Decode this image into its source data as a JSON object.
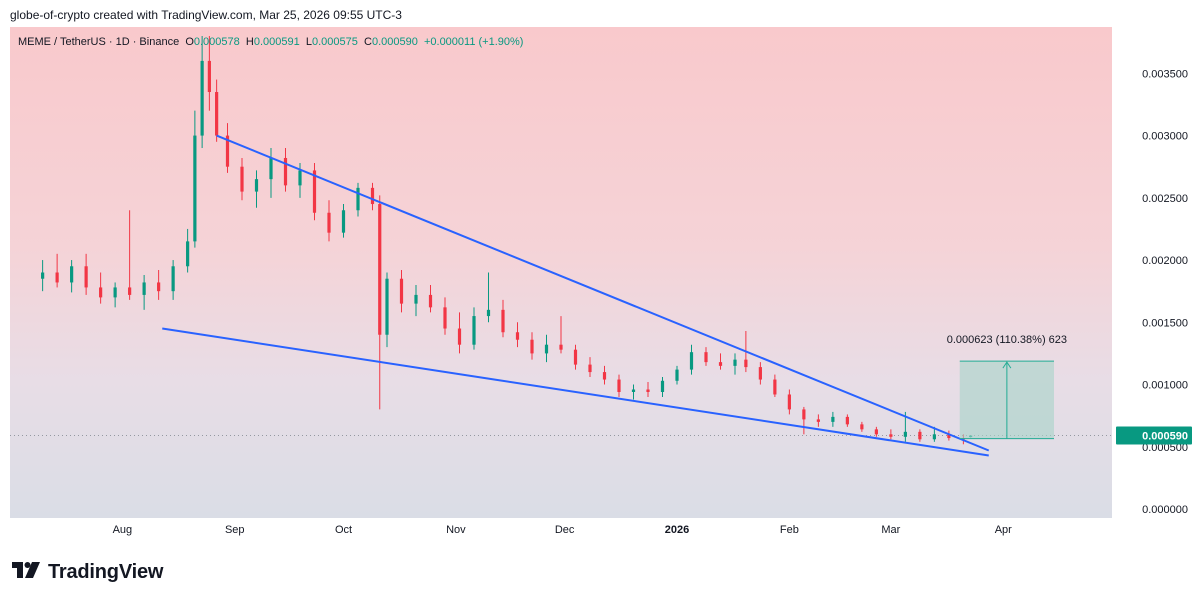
{
  "header": {
    "attribution": "globe-of-crypto created with TradingView.com, Mar 25, 2026 09:55 UTC-3"
  },
  "legend": {
    "symbol": "MEME / TetherUS · 1D · Binance",
    "o_label": "O",
    "o_value": "0.000578",
    "h_label": "H",
    "h_value": "0.000591",
    "l_label": "L",
    "l_value": "0.000575",
    "c_label": "C",
    "c_value": "0.000590",
    "change": "+0.000011 (+1.90%)"
  },
  "brand": {
    "name": "TradingView",
    "logo_icon": "tradingview-logo-icon"
  },
  "colors": {
    "up": "#089981",
    "down": "#f23645",
    "trendline": "#2962ff",
    "measure_fill": "#a6d3c8",
    "measure_line": "#22ab94",
    "price_tag": "#089981"
  },
  "chart_data": {
    "type": "candlestick",
    "symbol": "MEME/USDT",
    "interval": "1D",
    "ylim": [
      0,
      0.0038
    ],
    "y_ticks": [
      "0.000000",
      "0.000500",
      "0.001000",
      "0.001500",
      "0.002000",
      "0.002500",
      "0.003000",
      "0.003500"
    ],
    "y_tick_values": [
      0,
      0.0005,
      0.001,
      0.0015,
      0.002,
      0.0025,
      0.003,
      0.0035
    ],
    "x_ticks": [
      "Aug",
      "Sep",
      "Oct",
      "Nov",
      "Dec",
      "2026",
      "Feb",
      "Mar",
      "Apr"
    ],
    "x_tick_dates": [
      "2025-08-01",
      "2025-09-01",
      "2025-10-01",
      "2025-11-01",
      "2025-12-01",
      "2026-01-01",
      "2026-02-01",
      "2026-03-01",
      "2026-04-01"
    ],
    "current_price": "0.000590",
    "current_price_value": 0.00059,
    "trendlines": [
      {
        "name": "upper",
        "start": [
          "2025-08-27",
          0.003
        ],
        "end": [
          "2026-03-28",
          0.00047
        ]
      },
      {
        "name": "lower",
        "start": [
          "2025-08-12",
          0.00145
        ],
        "end": [
          "2026-03-28",
          0.00043
        ]
      }
    ],
    "measure": {
      "label": "0.000623 (110.38%) 623",
      "from_date": "2026-03-20",
      "to_date": "2026-04-15",
      "from_price": 0.000565,
      "to_price": 0.001188
    },
    "candles": [
      {
        "d": "2025-07-10",
        "o": 0.00185,
        "h": 0.002,
        "l": 0.00175,
        "c": 0.0019
      },
      {
        "d": "2025-07-14",
        "o": 0.0019,
        "h": 0.00205,
        "l": 0.00178,
        "c": 0.00182
      },
      {
        "d": "2025-07-18",
        "o": 0.00182,
        "h": 0.002,
        "l": 0.00174,
        "c": 0.00195
      },
      {
        "d": "2025-07-22",
        "o": 0.00195,
        "h": 0.00205,
        "l": 0.00172,
        "c": 0.00178
      },
      {
        "d": "2025-07-26",
        "o": 0.00178,
        "h": 0.0019,
        "l": 0.00165,
        "c": 0.0017
      },
      {
        "d": "2025-07-30",
        "o": 0.0017,
        "h": 0.00182,
        "l": 0.00162,
        "c": 0.00178
      },
      {
        "d": "2025-08-03",
        "o": 0.00178,
        "h": 0.0024,
        "l": 0.00168,
        "c": 0.00172
      },
      {
        "d": "2025-08-07",
        "o": 0.00172,
        "h": 0.00188,
        "l": 0.0016,
        "c": 0.00182
      },
      {
        "d": "2025-08-11",
        "o": 0.00182,
        "h": 0.00192,
        "l": 0.00168,
        "c": 0.00175
      },
      {
        "d": "2025-08-15",
        "o": 0.00175,
        "h": 0.002,
        "l": 0.00168,
        "c": 0.00195
      },
      {
        "d": "2025-08-19",
        "o": 0.00195,
        "h": 0.00225,
        "l": 0.0019,
        "c": 0.00215
      },
      {
        "d": "2025-08-21",
        "o": 0.00215,
        "h": 0.0032,
        "l": 0.0021,
        "c": 0.003
      },
      {
        "d": "2025-08-23",
        "o": 0.003,
        "h": 0.0038,
        "l": 0.0029,
        "c": 0.0036
      },
      {
        "d": "2025-08-25",
        "o": 0.0036,
        "h": 0.0038,
        "l": 0.0032,
        "c": 0.00335
      },
      {
        "d": "2025-08-27",
        "o": 0.00335,
        "h": 0.00345,
        "l": 0.00295,
        "c": 0.003
      },
      {
        "d": "2025-08-30",
        "o": 0.003,
        "h": 0.0031,
        "l": 0.0027,
        "c": 0.00275
      },
      {
        "d": "2025-09-03",
        "o": 0.00275,
        "h": 0.00282,
        "l": 0.00248,
        "c": 0.00255
      },
      {
        "d": "2025-09-07",
        "o": 0.00255,
        "h": 0.00272,
        "l": 0.00242,
        "c": 0.00265
      },
      {
        "d": "2025-09-11",
        "o": 0.00265,
        "h": 0.0029,
        "l": 0.0025,
        "c": 0.00282
      },
      {
        "d": "2025-09-15",
        "o": 0.00282,
        "h": 0.0029,
        "l": 0.00255,
        "c": 0.0026
      },
      {
        "d": "2025-09-19",
        "o": 0.0026,
        "h": 0.00278,
        "l": 0.0025,
        "c": 0.00272
      },
      {
        "d": "2025-09-23",
        "o": 0.00272,
        "h": 0.00278,
        "l": 0.00232,
        "c": 0.00238
      },
      {
        "d": "2025-09-27",
        "o": 0.00238,
        "h": 0.00248,
        "l": 0.00215,
        "c": 0.00222
      },
      {
        "d": "2025-10-01",
        "o": 0.00222,
        "h": 0.00245,
        "l": 0.00218,
        "c": 0.0024
      },
      {
        "d": "2025-10-05",
        "o": 0.0024,
        "h": 0.00262,
        "l": 0.00235,
        "c": 0.00258
      },
      {
        "d": "2025-10-09",
        "o": 0.00258,
        "h": 0.00262,
        "l": 0.0024,
        "c": 0.00245
      },
      {
        "d": "2025-10-11",
        "o": 0.00245,
        "h": 0.00252,
        "l": 0.0008,
        "c": 0.0014
      },
      {
        "d": "2025-10-13",
        "o": 0.0014,
        "h": 0.0019,
        "l": 0.0013,
        "c": 0.00185
      },
      {
        "d": "2025-10-17",
        "o": 0.00185,
        "h": 0.00192,
        "l": 0.00158,
        "c": 0.00165
      },
      {
        "d": "2025-10-21",
        "o": 0.00165,
        "h": 0.0018,
        "l": 0.00155,
        "c": 0.00172
      },
      {
        "d": "2025-10-25",
        "o": 0.00172,
        "h": 0.0018,
        "l": 0.00158,
        "c": 0.00162
      },
      {
        "d": "2025-10-29",
        "o": 0.00162,
        "h": 0.0017,
        "l": 0.0014,
        "c": 0.00145
      },
      {
        "d": "2025-11-02",
        "o": 0.00145,
        "h": 0.00158,
        "l": 0.00125,
        "c": 0.00132
      },
      {
        "d": "2025-11-06",
        "o": 0.00132,
        "h": 0.00162,
        "l": 0.00128,
        "c": 0.00155
      },
      {
        "d": "2025-11-10",
        "o": 0.00155,
        "h": 0.0019,
        "l": 0.0015,
        "c": 0.0016
      },
      {
        "d": "2025-11-14",
        "o": 0.0016,
        "h": 0.00168,
        "l": 0.00138,
        "c": 0.00142
      },
      {
        "d": "2025-11-18",
        "o": 0.00142,
        "h": 0.0015,
        "l": 0.0013,
        "c": 0.00136
      },
      {
        "d": "2025-11-22",
        "o": 0.00136,
        "h": 0.00142,
        "l": 0.0012,
        "c": 0.00125
      },
      {
        "d": "2025-11-26",
        "o": 0.00125,
        "h": 0.0014,
        "l": 0.00118,
        "c": 0.00132
      },
      {
        "d": "2025-11-30",
        "o": 0.00132,
        "h": 0.00155,
        "l": 0.00125,
        "c": 0.00128
      },
      {
        "d": "2025-12-04",
        "o": 0.00128,
        "h": 0.00132,
        "l": 0.00112,
        "c": 0.00116
      },
      {
        "d": "2025-12-08",
        "o": 0.00116,
        "h": 0.00122,
        "l": 0.00106,
        "c": 0.0011
      },
      {
        "d": "2025-12-12",
        "o": 0.0011,
        "h": 0.00115,
        "l": 0.001,
        "c": 0.00104
      },
      {
        "d": "2025-12-16",
        "o": 0.00104,
        "h": 0.00108,
        "l": 0.0009,
        "c": 0.00094
      },
      {
        "d": "2025-12-20",
        "o": 0.00094,
        "h": 0.001,
        "l": 0.00088,
        "c": 0.00096
      },
      {
        "d": "2025-12-24",
        "o": 0.00096,
        "h": 0.00102,
        "l": 0.0009,
        "c": 0.00094
      },
      {
        "d": "2025-12-28",
        "o": 0.00094,
        "h": 0.00106,
        "l": 0.0009,
        "c": 0.00103
      },
      {
        "d": "2026-01-01",
        "o": 0.00103,
        "h": 0.00115,
        "l": 0.001,
        "c": 0.00112
      },
      {
        "d": "2026-01-05",
        "o": 0.00112,
        "h": 0.00132,
        "l": 0.00108,
        "c": 0.00126
      },
      {
        "d": "2026-01-09",
        "o": 0.00126,
        "h": 0.0013,
        "l": 0.00115,
        "c": 0.00118
      },
      {
        "d": "2026-01-13",
        "o": 0.00118,
        "h": 0.00125,
        "l": 0.00112,
        "c": 0.00115
      },
      {
        "d": "2026-01-17",
        "o": 0.00115,
        "h": 0.00125,
        "l": 0.00108,
        "c": 0.0012
      },
      {
        "d": "2026-01-20",
        "o": 0.0012,
        "h": 0.00143,
        "l": 0.0011,
        "c": 0.00114
      },
      {
        "d": "2026-01-24",
        "o": 0.00114,
        "h": 0.00118,
        "l": 0.001,
        "c": 0.00104
      },
      {
        "d": "2026-01-28",
        "o": 0.00104,
        "h": 0.00108,
        "l": 0.0009,
        "c": 0.00092
      },
      {
        "d": "2026-02-01",
        "o": 0.00092,
        "h": 0.00096,
        "l": 0.00076,
        "c": 0.0008
      },
      {
        "d": "2026-02-05",
        "o": 0.0008,
        "h": 0.00082,
        "l": 0.0006,
        "c": 0.00072
      },
      {
        "d": "2026-02-09",
        "o": 0.00072,
        "h": 0.00076,
        "l": 0.00066,
        "c": 0.0007
      },
      {
        "d": "2026-02-13",
        "o": 0.0007,
        "h": 0.00078,
        "l": 0.00066,
        "c": 0.00074
      },
      {
        "d": "2026-02-17",
        "o": 0.00074,
        "h": 0.00076,
        "l": 0.00066,
        "c": 0.00068
      },
      {
        "d": "2026-02-21",
        "o": 0.00068,
        "h": 0.0007,
        "l": 0.00062,
        "c": 0.00064
      },
      {
        "d": "2026-02-25",
        "o": 0.00064,
        "h": 0.00066,
        "l": 0.00058,
        "c": 0.0006
      },
      {
        "d": "2026-03-01",
        "o": 0.0006,
        "h": 0.00064,
        "l": 0.00056,
        "c": 0.00058
      },
      {
        "d": "2026-03-05",
        "o": 0.00058,
        "h": 0.00078,
        "l": 0.00054,
        "c": 0.00062
      },
      {
        "d": "2026-03-09",
        "o": 0.00062,
        "h": 0.00064,
        "l": 0.00054,
        "c": 0.00056
      },
      {
        "d": "2026-03-13",
        "o": 0.00056,
        "h": 0.00066,
        "l": 0.00054,
        "c": 0.0006
      },
      {
        "d": "2026-03-17",
        "o": 0.0006,
        "h": 0.00063,
        "l": 0.00055,
        "c": 0.00057
      },
      {
        "d": "2026-03-21",
        "o": 0.00057,
        "h": 0.0006,
        "l": 0.00052,
        "c": 0.00056
      },
      {
        "d": "2026-03-23",
        "o": 0.000578,
        "h": 0.000591,
        "l": 0.000575,
        "c": 0.00059
      }
    ]
  }
}
